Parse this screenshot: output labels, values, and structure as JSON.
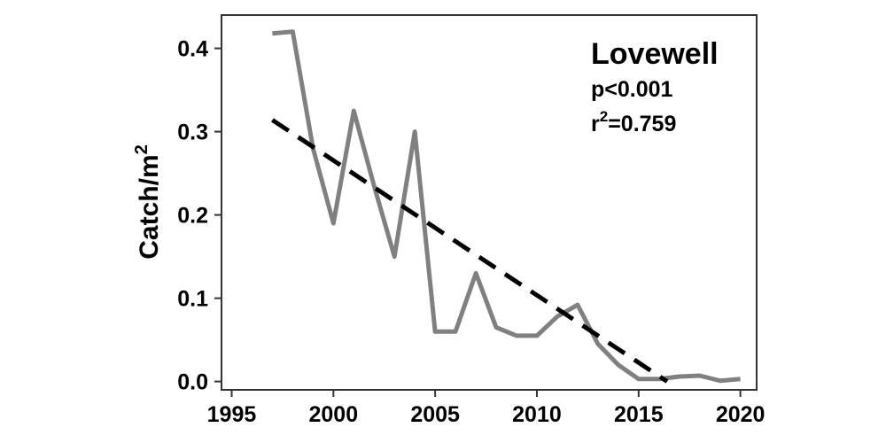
{
  "chart_data": {
    "type": "line",
    "title": "Lovewell",
    "xlabel": "",
    "ylabel": "Catch/m",
    "ylabel_superscript": "2",
    "xlim": [
      1994.5,
      2020.8
    ],
    "ylim": [
      -0.01,
      0.44
    ],
    "x_ticks": [
      1995,
      2000,
      2005,
      2010,
      2015,
      2020
    ],
    "y_ticks": [
      0.0,
      0.1,
      0.2,
      0.3,
      0.4
    ],
    "y_tick_labels": [
      "0.0",
      "0.1",
      "0.2",
      "0.3",
      "0.4"
    ],
    "grid": false,
    "annotations": {
      "p_value": "p<0.001",
      "r2_prefix": "r",
      "r2_superscript": "2",
      "r2_value": "=0.759"
    },
    "series": [
      {
        "color": "#808080",
        "style": "solid",
        "x": [
          1997,
          1998,
          1999,
          2000,
          2001,
          2002,
          2003,
          2004,
          2005,
          2006,
          2007,
          2008,
          2009,
          2010,
          2011,
          2012,
          2013,
          2014,
          2015,
          2016,
          2017,
          2018,
          2019,
          2020
        ],
        "y": [
          0.418,
          0.42,
          0.28,
          0.19,
          0.325,
          0.235,
          0.15,
          0.3,
          0.06,
          0.06,
          0.13,
          0.065,
          0.055,
          0.055,
          0.078,
          0.092,
          0.045,
          0.02,
          0.003,
          0.003,
          0.006,
          0.007,
          0.001,
          0.003
        ]
      },
      {
        "color": "#000000",
        "style": "dashed",
        "x": [
          1997,
          2016.4
        ],
        "y": [
          0.314,
          0.0
        ]
      }
    ]
  }
}
